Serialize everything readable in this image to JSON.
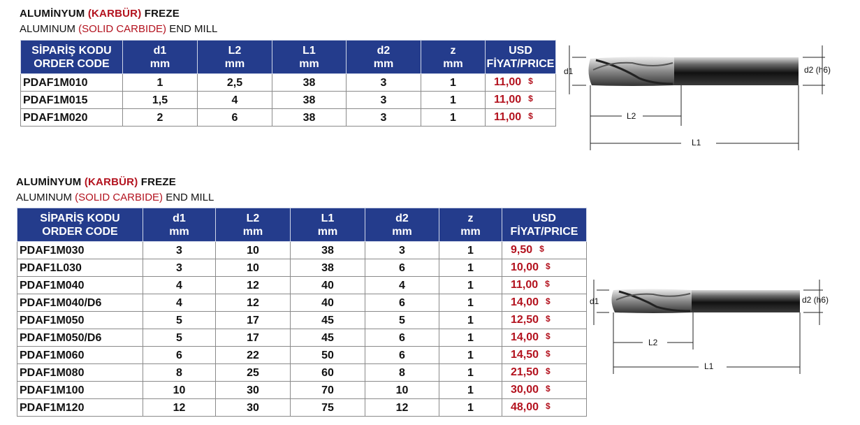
{
  "sections": [
    {
      "title_tr_parts": [
        "ALUMİNYUM ",
        "(KARBÜR)",
        " FREZE"
      ],
      "title_en_parts": [
        "ALUMINUM ",
        "(SOLID CARBIDE)",
        " END MILL"
      ],
      "headers": [
        [
          "SİPARİŞ KODU",
          "ORDER CODE"
        ],
        [
          "d1",
          "mm"
        ],
        [
          "L2",
          "mm"
        ],
        [
          "L1",
          "mm"
        ],
        [
          "d2",
          "mm"
        ],
        [
          "z",
          "mm"
        ],
        [
          "USD",
          "FİYAT/PRICE"
        ]
      ],
      "rows": [
        {
          "code": "PDAF1M010",
          "d1": "1",
          "L2": "2,5",
          "L1": "38",
          "d2": "3",
          "z": "1",
          "price": "11,00",
          "cur": "$"
        },
        {
          "code": "PDAF1M015",
          "d1": "1,5",
          "L2": "4",
          "L1": "38",
          "d2": "3",
          "z": "1",
          "price": "11,00",
          "cur": "$"
        },
        {
          "code": "PDAF1M020",
          "d1": "2",
          "L2": "6",
          "L1": "38",
          "d2": "3",
          "z": "1",
          "price": "11,00",
          "cur": "$"
        }
      ],
      "diagram_labels": {
        "d1": "d1",
        "d2": "d2 (h6)",
        "L2": "L2",
        "L1": "L1"
      }
    },
    {
      "title_tr_parts": [
        "ALUMİNYUM ",
        "(KARBÜR)",
        " FREZE"
      ],
      "title_en_parts": [
        "ALUMINUM ",
        "(SOLID CARBIDE)",
        " END MILL"
      ],
      "headers": [
        [
          "SİPARİŞ KODU",
          "ORDER CODE"
        ],
        [
          "d1",
          "mm"
        ],
        [
          "L2",
          "mm"
        ],
        [
          "L1",
          "mm"
        ],
        [
          "d2",
          "mm"
        ],
        [
          "z",
          "mm"
        ],
        [
          "USD",
          "FİYAT/PRICE"
        ]
      ],
      "rows": [
        {
          "code": "PDAF1M030",
          "d1": "3",
          "L2": "10",
          "L1": "38",
          "d2": "3",
          "z": "1",
          "price": "9,50",
          "cur": "$"
        },
        {
          "code": "PDAF1L030",
          "d1": "3",
          "L2": "10",
          "L1": "38",
          "d2": "6",
          "z": "1",
          "price": "10,00",
          "cur": "$"
        },
        {
          "code": "PDAF1M040",
          "d1": "4",
          "L2": "12",
          "L1": "40",
          "d2": "4",
          "z": "1",
          "price": "11,00",
          "cur": "$"
        },
        {
          "code": "PDAF1M040/D6",
          "d1": "4",
          "L2": "12",
          "L1": "40",
          "d2": "6",
          "z": "1",
          "price": "14,00",
          "cur": "$"
        },
        {
          "code": "PDAF1M050",
          "d1": "5",
          "L2": "17",
          "L1": "45",
          "d2": "5",
          "z": "1",
          "price": "12,50",
          "cur": "$"
        },
        {
          "code": "PDAF1M050/D6",
          "d1": "5",
          "L2": "17",
          "L1": "45",
          "d2": "6",
          "z": "1",
          "price": "14,00",
          "cur": "$"
        },
        {
          "code": "PDAF1M060",
          "d1": "6",
          "L2": "22",
          "L1": "50",
          "d2": "6",
          "z": "1",
          "price": "14,50",
          "cur": "$"
        },
        {
          "code": "PDAF1M080",
          "d1": "8",
          "L2": "25",
          "L1": "60",
          "d2": "8",
          "z": "1",
          "price": "21,50",
          "cur": "$"
        },
        {
          "code": "PDAF1M100",
          "d1": "10",
          "L2": "30",
          "L1": "70",
          "d2": "10",
          "z": "1",
          "price": "30,00",
          "cur": "$"
        },
        {
          "code": "PDAF1M120",
          "d1": "12",
          "L2": "30",
          "L1": "75",
          "d2": "12",
          "z": "1",
          "price": "48,00",
          "cur": "$"
        }
      ],
      "diagram_labels": {
        "d1": "d1",
        "d2": "d2 (h6)",
        "L2": "L2",
        "L1": "L1"
      }
    }
  ],
  "colors": {
    "header_bg": "#243c8c",
    "accent_red": "#b3121e"
  }
}
